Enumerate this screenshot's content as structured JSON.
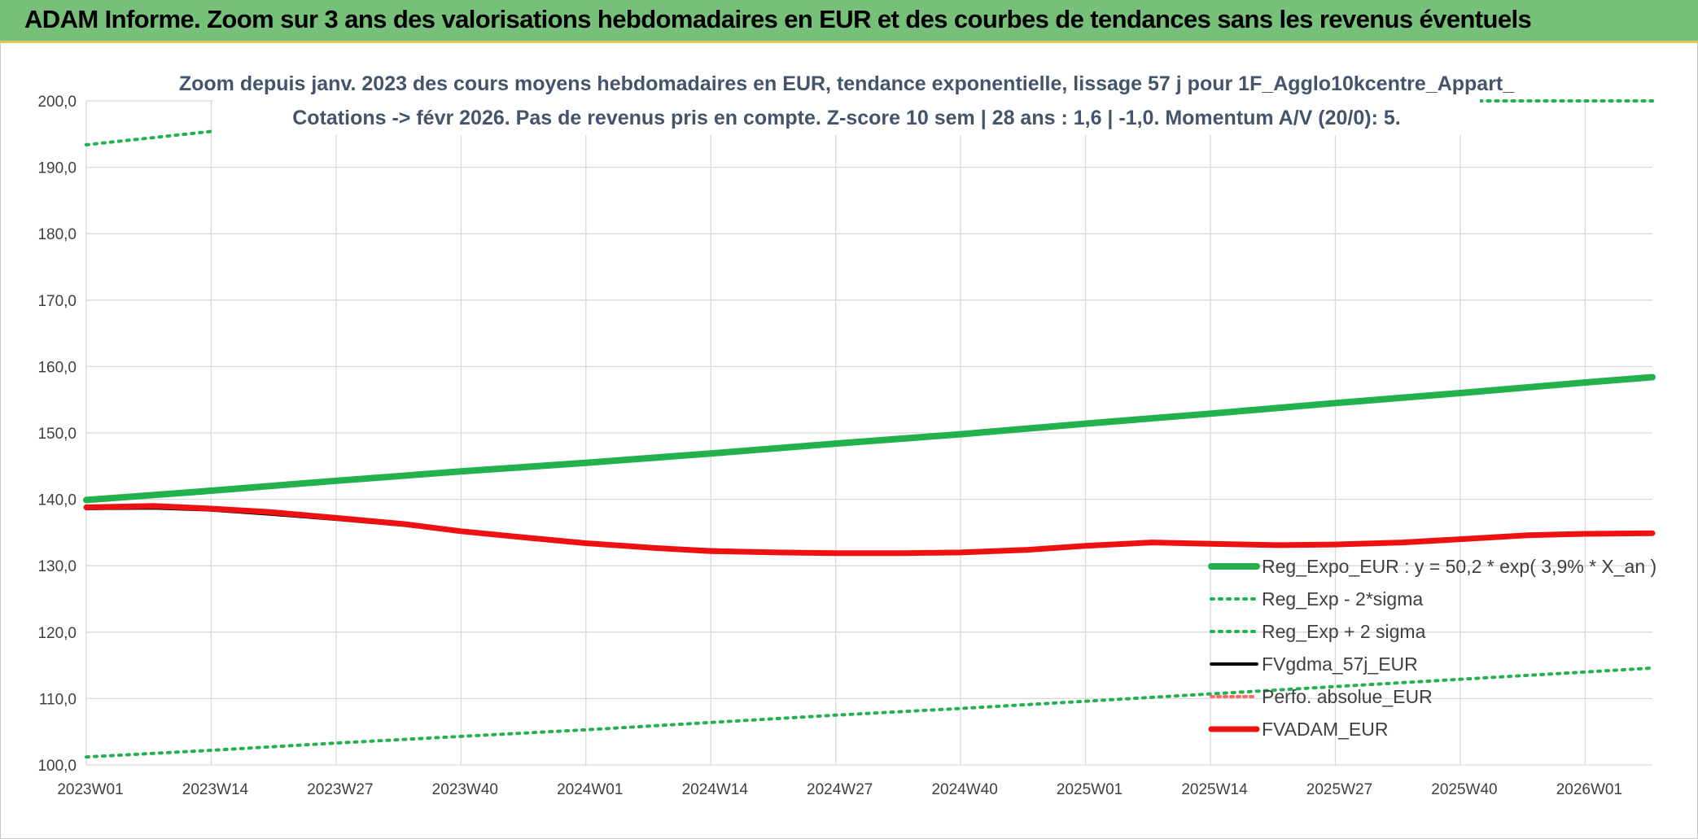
{
  "header": {
    "title": "ADAM Informe. Zoom sur 3 ans des valorisations hebdomadaires en EUR et des courbes de tendances sans les revenus éventuels"
  },
  "colors": {
    "reg_expo": "#22b14c",
    "sigma": "#22b14c",
    "fvgdma": "#000000",
    "perfo": "#ff6a6a",
    "fvadam": "#ee1111",
    "grid": "#d9d9d9",
    "header_bg": "#77c07a"
  },
  "chart_data": {
    "type": "line",
    "title_line1": "Zoom depuis janv. 2023 des cours moyens hebdomadaires en EUR, tendance exponentielle, lissage 57 j pour 1F_Agglo10kcentre_Appart_",
    "title_line2": "Cotations -> févr 2026. Pas de revenus pris en compte. Z-score 10 sem | 28 ans : 1,6 | -1,0. Momentum A/V (20/0): 5.",
    "x_tick_labels": [
      "2023W01",
      "2023W14",
      "2023W27",
      "2023W40",
      "2024W01",
      "2024W14",
      "2024W27",
      "2024W40",
      "2025W01",
      "2025W14",
      "2025W27",
      "2025W40",
      "2026W01"
    ],
    "y_tick_labels": [
      "100,0",
      "110,0",
      "120,0",
      "130,0",
      "140,0",
      "150,0",
      "160,0",
      "170,0",
      "180,0",
      "190,0",
      "200,0"
    ],
    "ylim": [
      100,
      200
    ],
    "x_week_range": [
      1,
      164
    ],
    "grid": true,
    "legend_position": "bottom-right",
    "legend": [
      "Reg_Expo_EUR : y = 50,2 * exp( 3,9% *  X_an )",
      "Reg_Exp - 2*sigma",
      "Reg_Exp + 2 sigma",
      "FVgdma_57j_EUR",
      "Perfo. absolue_EUR",
      "FVADAM_EUR"
    ],
    "series": [
      {
        "name": "Reg_Expo_EUR : y = 50,2 * exp( 3,9% *  X_an )",
        "style": "solid-thick",
        "points": [
          [
            1,
            139.9
          ],
          [
            14,
            141.3
          ],
          [
            27,
            142.8
          ],
          [
            40,
            144.2
          ],
          [
            53,
            145.5
          ],
          [
            66,
            146.9
          ],
          [
            79,
            148.4
          ],
          [
            92,
            149.8
          ],
          [
            105,
            151.4
          ],
          [
            118,
            152.9
          ],
          [
            131,
            154.5
          ],
          [
            144,
            156.0
          ],
          [
            157,
            157.6
          ],
          [
            164,
            158.4
          ]
        ]
      },
      {
        "name": "Reg_Exp - 2*sigma",
        "style": "dotted",
        "points": [
          [
            1,
            101.2
          ],
          [
            14,
            102.2
          ],
          [
            27,
            103.3
          ],
          [
            40,
            104.3
          ],
          [
            53,
            105.3
          ],
          [
            66,
            106.4
          ],
          [
            79,
            107.5
          ],
          [
            92,
            108.5
          ],
          [
            105,
            109.6
          ],
          [
            118,
            110.7
          ],
          [
            131,
            111.8
          ],
          [
            144,
            112.9
          ],
          [
            157,
            114.0
          ],
          [
            164,
            114.6
          ]
        ]
      },
      {
        "name": "Reg_Exp + 2 sigma",
        "style": "dotted",
        "segments": [
          [
            [
              1,
              193.4
            ],
            [
              14,
              195.4
            ]
          ],
          [
            [
              146,
              200.0
            ],
            [
              164,
              200.0
            ]
          ]
        ]
      },
      {
        "name": "FVgdma_57j_EUR",
        "style": "solid",
        "points": [
          [
            1,
            138.6
          ],
          [
            8,
            138.7
          ],
          [
            14,
            138.4
          ],
          [
            20,
            137.8
          ],
          [
            27,
            137.0
          ],
          [
            34,
            136.1
          ],
          [
            40,
            135.1
          ],
          [
            47,
            134.1
          ],
          [
            53,
            133.4
          ],
          [
            60,
            132.8
          ],
          [
            66,
            132.4
          ],
          [
            73,
            132.1
          ],
          [
            79,
            131.9
          ],
          [
            86,
            131.9
          ],
          [
            92,
            132.1
          ],
          [
            99,
            132.4
          ],
          [
            105,
            133.0
          ],
          [
            112,
            133.4
          ],
          [
            118,
            133.3
          ],
          [
            125,
            133.2
          ],
          [
            131,
            133.3
          ],
          [
            138,
            133.6
          ],
          [
            144,
            134.1
          ],
          [
            151,
            134.6
          ],
          [
            157,
            134.8
          ],
          [
            164,
            134.9
          ]
        ]
      },
      {
        "name": "Perfo. absolue_EUR",
        "style": "dotted",
        "points": []
      },
      {
        "name": "FVADAM_EUR",
        "style": "solid-thick",
        "points": [
          [
            1,
            138.8
          ],
          [
            8,
            139.0
          ],
          [
            14,
            138.6
          ],
          [
            20,
            138.1
          ],
          [
            27,
            137.2
          ],
          [
            34,
            136.3
          ],
          [
            40,
            135.2
          ],
          [
            47,
            134.2
          ],
          [
            53,
            133.4
          ],
          [
            60,
            132.7
          ],
          [
            66,
            132.2
          ],
          [
            73,
            132.0
          ],
          [
            79,
            131.9
          ],
          [
            86,
            131.9
          ],
          [
            92,
            132.0
          ],
          [
            99,
            132.4
          ],
          [
            105,
            133.0
          ],
          [
            112,
            133.5
          ],
          [
            118,
            133.3
          ],
          [
            125,
            133.1
          ],
          [
            131,
            133.2
          ],
          [
            138,
            133.5
          ],
          [
            144,
            134.0
          ],
          [
            151,
            134.6
          ],
          [
            157,
            134.8
          ],
          [
            164,
            134.9
          ]
        ]
      }
    ]
  }
}
